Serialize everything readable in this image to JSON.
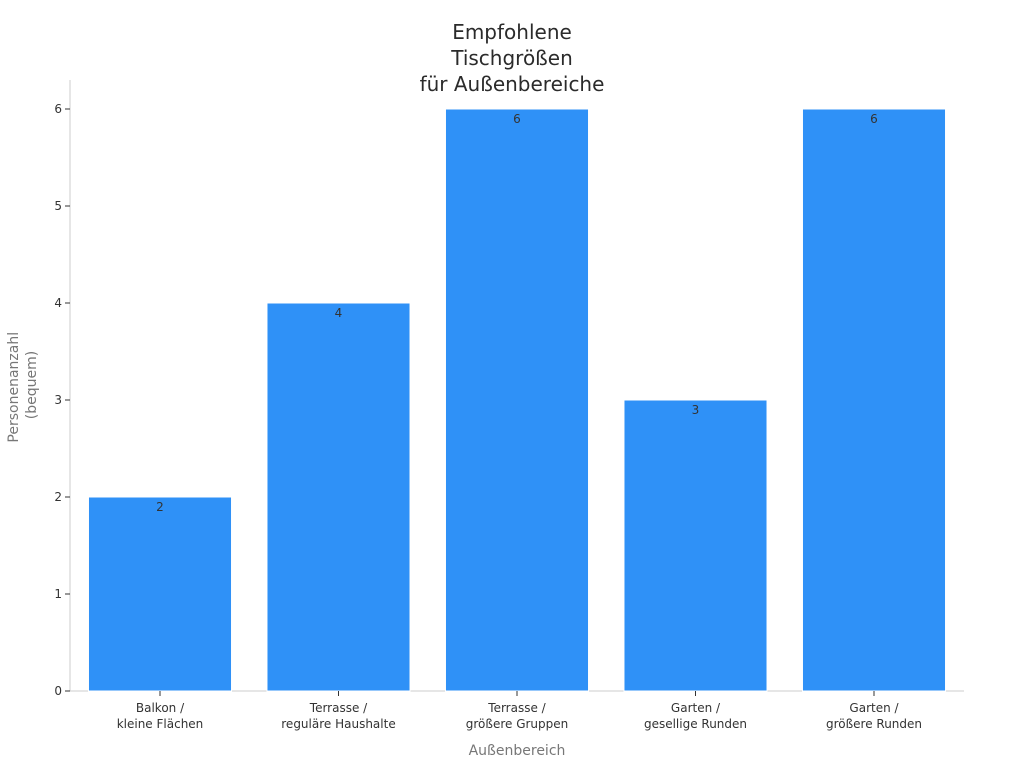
{
  "chart_data": {
    "type": "bar",
    "title": [
      "Empfohlene",
      "Tischgrößen",
      "für Außenbereiche"
    ],
    "xlabel": "Außenbereich",
    "ylabel": [
      "Personenanzahl",
      "(bequem)"
    ],
    "categories": [
      [
        "Balkon /",
        "kleine Flächen"
      ],
      [
        "Terrasse /",
        "reguläre Haushalte"
      ],
      [
        "Terrasse /",
        "größere Gruppen"
      ],
      [
        "Garten /",
        "gesellige Runden"
      ],
      [
        "Garten /",
        "größere Runden"
      ]
    ],
    "values": [
      2,
      4,
      6,
      3,
      6
    ],
    "data_labels": [
      "2",
      "4",
      "6",
      "3",
      "6"
    ],
    "ylim": [
      0,
      6.3
    ],
    "yticks": [
      0,
      1,
      2,
      3,
      4,
      5,
      6
    ],
    "grid": false,
    "bar_color": "#2f91f7",
    "axis_color": "#cccccc",
    "text_color": "#333333",
    "label_color": "#777777"
  }
}
